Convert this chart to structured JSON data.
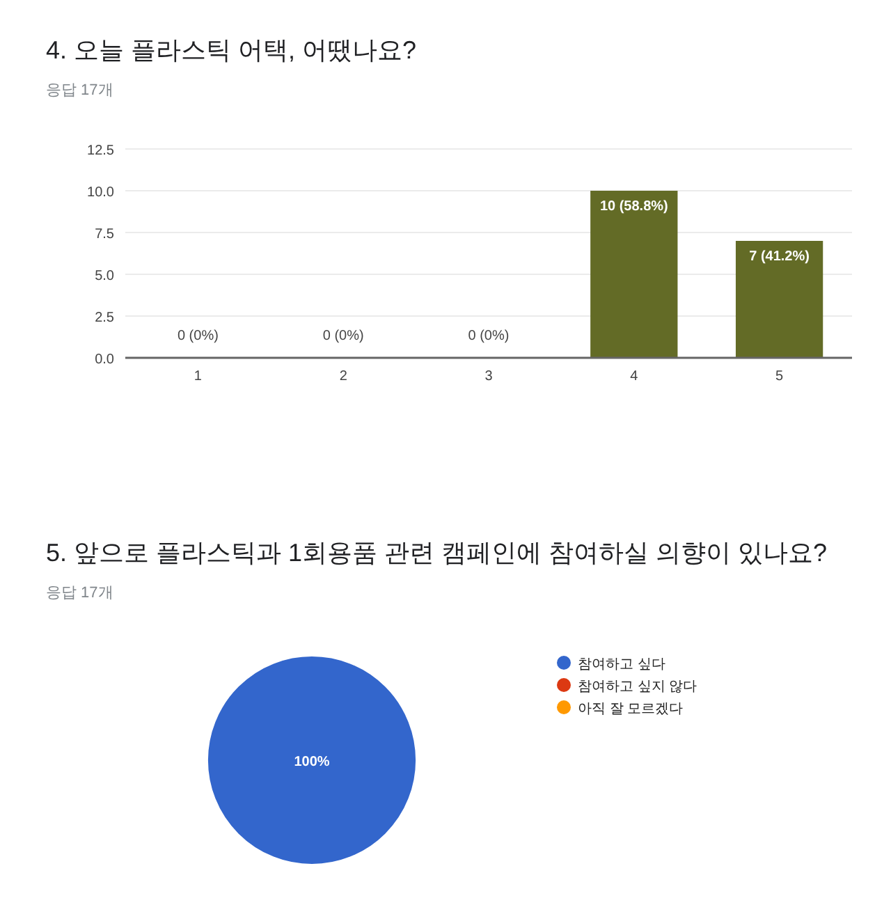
{
  "chart_data": [
    {
      "type": "bar",
      "title": "4. 오늘 플라스틱 어택, 어땠나요?",
      "subtitle": "응답 17개",
      "categories": [
        "1",
        "2",
        "3",
        "4",
        "5"
      ],
      "series": [
        {
          "color": "#636b26",
          "values": [
            0,
            0,
            0,
            10,
            7
          ],
          "value_labels": [
            "0 (0%)",
            "0 (0%)",
            "0 (0%)",
            "10 (58.8%)",
            "7 (41.2%)"
          ]
        }
      ],
      "ylim": [
        0,
        12.5
      ],
      "yticks": [
        {
          "value": 0,
          "label": "0.0"
        },
        2.5,
        {
          "value": 5,
          "label": "5.0"
        },
        7.5,
        {
          "value": 10,
          "label": "10.0"
        },
        12.5
      ],
      "grid": "y"
    },
    {
      "type": "pie",
      "title": "5. 앞으로 플라스틱과 1회용품 관련 캠페인에 참여하실 의향이 있나요?",
      "subtitle": "응답 17개",
      "categories": [
        "참여하고 싶다",
        "참여하고 싶지 않다",
        "아직 잘 모르겠다"
      ],
      "values": [
        100,
        0,
        0
      ],
      "colors": [
        "#3366cc",
        "#dc3912",
        "#ff9900"
      ],
      "value_labels": [
        "100%",
        null,
        null
      ],
      "legend": "right"
    }
  ]
}
